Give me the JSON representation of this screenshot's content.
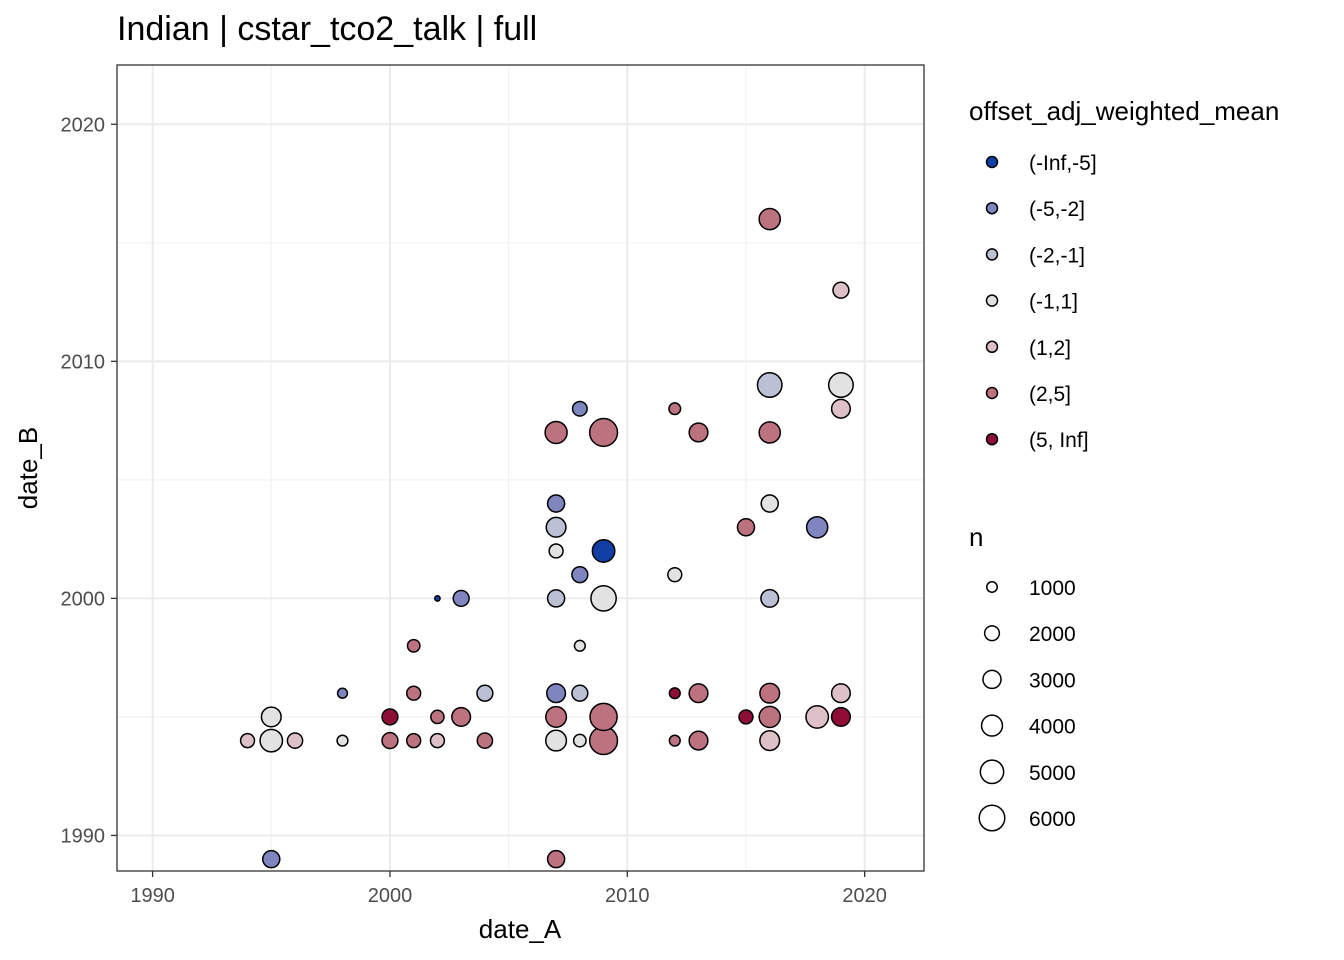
{
  "chart_data": {
    "type": "scatter",
    "title": "Indian | cstar_tco2_talk | full",
    "xlabel": "date_A",
    "ylabel": "date_B",
    "xlim": [
      1988.5,
      2022.5
    ],
    "ylim": [
      1988.5,
      2022.5
    ],
    "x_ticks": [
      1990,
      2000,
      2010,
      2020
    ],
    "y_ticks": [
      1990,
      2000,
      2010,
      2020
    ],
    "x_tick_labels": [
      "1990",
      "2000",
      "2010",
      "2020"
    ],
    "y_tick_labels": [
      "1990",
      "2000",
      "2010",
      "2020"
    ],
    "grid": true,
    "legend_position": "right",
    "color_legend": {
      "title": "offset_adj_weighted_mean",
      "items": [
        {
          "label": "(-Inf,-5]",
          "color": "#0F3FA5"
        },
        {
          "label": "(-5,-2]",
          "color": "#7F86BF"
        },
        {
          "label": "(-2,-1]",
          "color": "#BCC0D5"
        },
        {
          "label": "(-1,1]",
          "color": "#E2E2E2"
        },
        {
          "label": "(1,2]",
          "color": "#DDC1C6"
        },
        {
          "label": "(2,5]",
          "color": "#BD737F"
        },
        {
          "label": "(5, Inf]",
          "color": "#8E0E35"
        }
      ]
    },
    "size_legend": {
      "title": "n",
      "items": [
        {
          "label": "1000",
          "value": 1000
        },
        {
          "label": "2000",
          "value": 2000
        },
        {
          "label": "3000",
          "value": 3000
        },
        {
          "label": "4000",
          "value": 4000
        },
        {
          "label": "5000",
          "value": 5000
        },
        {
          "label": "6000",
          "value": 6000
        }
      ]
    },
    "points": [
      {
        "x": 1994,
        "y": 1994,
        "cls": "(1,2]",
        "n": 1000
      },
      {
        "x": 1995,
        "y": 1994,
        "cls": "(-1,1]",
        "n": 2600
      },
      {
        "x": 1995,
        "y": 1995,
        "cls": "(-1,1]",
        "n": 2000
      },
      {
        "x": 1995,
        "y": 1989,
        "cls": "(-5,-2]",
        "n": 1500
      },
      {
        "x": 1996,
        "y": 1994,
        "cls": "(1,2]",
        "n": 1200
      },
      {
        "x": 1998,
        "y": 1994,
        "cls": "(-1,1]",
        "n": 600
      },
      {
        "x": 1998,
        "y": 1996,
        "cls": "(-5,-2]",
        "n": 500
      },
      {
        "x": 2000,
        "y": 1994,
        "cls": "(2,5]",
        "n": 1300
      },
      {
        "x": 2000,
        "y": 1995,
        "cls": "(5, Inf]",
        "n": 1300
      },
      {
        "x": 2001,
        "y": 1994,
        "cls": "(2,5]",
        "n": 1000
      },
      {
        "x": 2001,
        "y": 1996,
        "cls": "(2,5]",
        "n": 1000
      },
      {
        "x": 2001,
        "y": 1998,
        "cls": "(2,5]",
        "n": 800
      },
      {
        "x": 2002,
        "y": 1994,
        "cls": "(1,2]",
        "n": 1000
      },
      {
        "x": 2002,
        "y": 1995,
        "cls": "(2,5]",
        "n": 900
      },
      {
        "x": 2002,
        "y": 2000,
        "cls": "(-Inf,-5]",
        "n": 150
      },
      {
        "x": 2003,
        "y": 1995,
        "cls": "(2,5]",
        "n": 1800
      },
      {
        "x": 2003,
        "y": 2000,
        "cls": "(-5,-2]",
        "n": 1300
      },
      {
        "x": 2004,
        "y": 1994,
        "cls": "(2,5]",
        "n": 1200
      },
      {
        "x": 2004,
        "y": 1996,
        "cls": "(-2,-1]",
        "n": 1300
      },
      {
        "x": 2007,
        "y": 1989,
        "cls": "(2,5]",
        "n": 1500
      },
      {
        "x": 2007,
        "y": 1994,
        "cls": "(-1,1]",
        "n": 2200
      },
      {
        "x": 2007,
        "y": 1995,
        "cls": "(2,5]",
        "n": 2200
      },
      {
        "x": 2007,
        "y": 1996,
        "cls": "(-5,-2]",
        "n": 1800
      },
      {
        "x": 2007,
        "y": 2000,
        "cls": "(-2,-1]",
        "n": 1500
      },
      {
        "x": 2007,
        "y": 2002,
        "cls": "(-1,1]",
        "n": 1000
      },
      {
        "x": 2007,
        "y": 2003,
        "cls": "(-2,-1]",
        "n": 2000
      },
      {
        "x": 2007,
        "y": 2004,
        "cls": "(-5,-2]",
        "n": 1500
      },
      {
        "x": 2007,
        "y": 2007,
        "cls": "(2,5]",
        "n": 2500
      },
      {
        "x": 2008,
        "y": 1994,
        "cls": "(-1,1]",
        "n": 800
      },
      {
        "x": 2008,
        "y": 1996,
        "cls": "(-2,-1]",
        "n": 1300
      },
      {
        "x": 2008,
        "y": 1998,
        "cls": "(-1,1]",
        "n": 600
      },
      {
        "x": 2008,
        "y": 2001,
        "cls": "(-5,-2]",
        "n": 1300
      },
      {
        "x": 2008,
        "y": 2008,
        "cls": "(-5,-2]",
        "n": 1100
      },
      {
        "x": 2009,
        "y": 1994,
        "cls": "(2,5]",
        "n": 4000
      },
      {
        "x": 2009,
        "y": 1995,
        "cls": "(2,5]",
        "n": 3800
      },
      {
        "x": 2009,
        "y": 2000,
        "cls": "(-1,1]",
        "n": 3300
      },
      {
        "x": 2009,
        "y": 2002,
        "cls": "(-Inf,-5]",
        "n": 2600
      },
      {
        "x": 2009,
        "y": 2007,
        "cls": "(2,5]",
        "n": 4000
      },
      {
        "x": 2012,
        "y": 1994,
        "cls": "(2,5]",
        "n": 600
      },
      {
        "x": 2012,
        "y": 1996,
        "cls": "(5, Inf]",
        "n": 600
      },
      {
        "x": 2012,
        "y": 2001,
        "cls": "(-1,1]",
        "n": 1000
      },
      {
        "x": 2012,
        "y": 2008,
        "cls": "(2,5]",
        "n": 700
      },
      {
        "x": 2013,
        "y": 1994,
        "cls": "(2,5]",
        "n": 1800
      },
      {
        "x": 2013,
        "y": 1996,
        "cls": "(2,5]",
        "n": 1800
      },
      {
        "x": 2013,
        "y": 2007,
        "cls": "(2,5]",
        "n": 1800
      },
      {
        "x": 2015,
        "y": 1995,
        "cls": "(5, Inf]",
        "n": 1000
      },
      {
        "x": 2015,
        "y": 2003,
        "cls": "(2,5]",
        "n": 1500
      },
      {
        "x": 2016,
        "y": 1994,
        "cls": "(1,2]",
        "n": 2000
      },
      {
        "x": 2016,
        "y": 1995,
        "cls": "(2,5]",
        "n": 2300
      },
      {
        "x": 2016,
        "y": 1996,
        "cls": "(2,5]",
        "n": 2000
      },
      {
        "x": 2016,
        "y": 2000,
        "cls": "(-2,-1]",
        "n": 1600
      },
      {
        "x": 2016,
        "y": 2004,
        "cls": "(-1,1]",
        "n": 1500
      },
      {
        "x": 2016,
        "y": 2007,
        "cls": "(2,5]",
        "n": 2300
      },
      {
        "x": 2016,
        "y": 2009,
        "cls": "(-2,-1]",
        "n": 3100
      },
      {
        "x": 2016,
        "y": 2016,
        "cls": "(2,5]",
        "n": 2300
      },
      {
        "x": 2018,
        "y": 2003,
        "cls": "(-5,-2]",
        "n": 2300
      },
      {
        "x": 2019,
        "y": 1995,
        "cls": "(5, Inf]",
        "n": 1800
      },
      {
        "x": 2019,
        "y": 1996,
        "cls": "(1,2]",
        "n": 1800
      },
      {
        "x": 2019,
        "y": 2008,
        "cls": "(1,2]",
        "n": 1800
      },
      {
        "x": 2019,
        "y": 2009,
        "cls": "(-1,1]",
        "n": 3100
      },
      {
        "x": 2019,
        "y": 2013,
        "cls": "(1,2]",
        "n": 1300
      },
      {
        "x": 2018,
        "y": 1995,
        "cls": "(1,2]",
        "n": 2600
      }
    ]
  }
}
